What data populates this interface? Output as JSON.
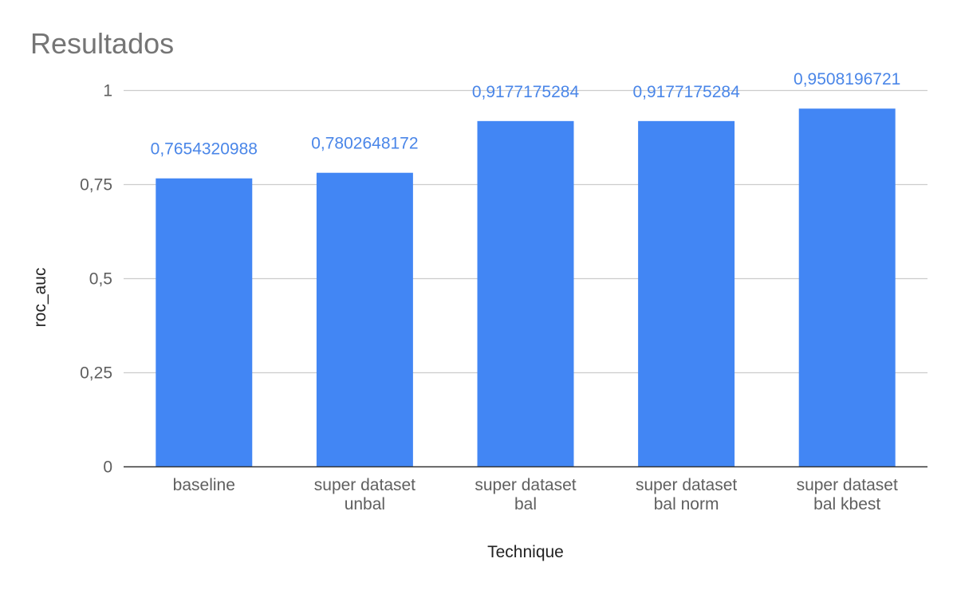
{
  "chart_data": {
    "type": "bar",
    "title": "Resultados",
    "xlabel": "Technique",
    "ylabel": "roc_auc",
    "categories": [
      [
        "baseline"
      ],
      [
        "super dataset",
        "unbal"
      ],
      [
        "super dataset",
        "bal"
      ],
      [
        "super dataset",
        "bal norm"
      ],
      [
        "super dataset",
        "bal kbest"
      ]
    ],
    "values": [
      0.7654320988,
      0.7802648172,
      0.9177175284,
      0.9177175284,
      0.9508196721
    ],
    "data_labels": [
      "0,7654320988",
      "0,7802648172",
      "0,9177175284",
      "0,9177175284",
      "0,9508196721"
    ],
    "ylim": [
      0,
      1
    ],
    "yticks": [
      0,
      0.25,
      0.5,
      0.75,
      1
    ],
    "ytick_labels": [
      "0",
      "0,25",
      "0,5",
      "0,75",
      "1"
    ],
    "grid": true,
    "legend": "none",
    "colors": {
      "bar": "#4286f4",
      "data_label": "#4a86e8",
      "grid": "#cccccc",
      "axis": "#333333",
      "title": "#757575",
      "tick_label": "#5f5f5f"
    }
  }
}
